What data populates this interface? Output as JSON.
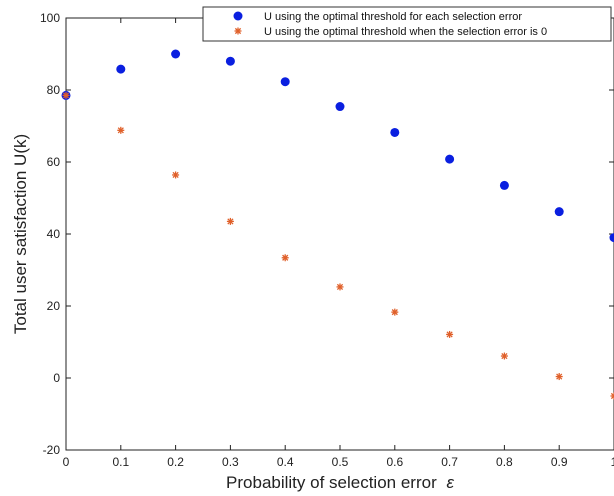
{
  "chart_data": {
    "type": "scatter",
    "xlabel": "Probability of selection error",
    "xlabel_symbol": "ε",
    "ylabel": "Total user satisfaction U(k)",
    "xlim": [
      0,
      1
    ],
    "ylim": [
      -20,
      100
    ],
    "x_ticks": [
      "0",
      "0.1",
      "0.2",
      "0.3",
      "0.4",
      "0.5",
      "0.6",
      "0.7",
      "0.8",
      "0.9",
      "1"
    ],
    "y_ticks": [
      "-20",
      "0",
      "20",
      "40",
      "60",
      "80",
      "100"
    ],
    "legend_position": "top-right",
    "grid": false,
    "x": [
      0,
      0.1,
      0.2,
      0.3,
      0.4,
      0.5,
      0.6,
      0.7,
      0.8,
      0.9,
      1.0
    ],
    "series": [
      {
        "name": "U using the optimal threshold for each selection error",
        "marker": "filled-circle",
        "color": "#0a1fe0",
        "values": [
          78.5,
          85.8,
          90.0,
          88.0,
          82.3,
          75.4,
          68.2,
          60.8,
          53.5,
          46.2,
          39.0
        ]
      },
      {
        "name": "U using the optimal threshold when the selection error is 0",
        "marker": "asterisk",
        "color": "#e0602a",
        "values": [
          78.5,
          68.8,
          56.4,
          43.5,
          33.4,
          25.3,
          18.3,
          12.1,
          6.1,
          0.4,
          -5.0
        ]
      }
    ]
  }
}
